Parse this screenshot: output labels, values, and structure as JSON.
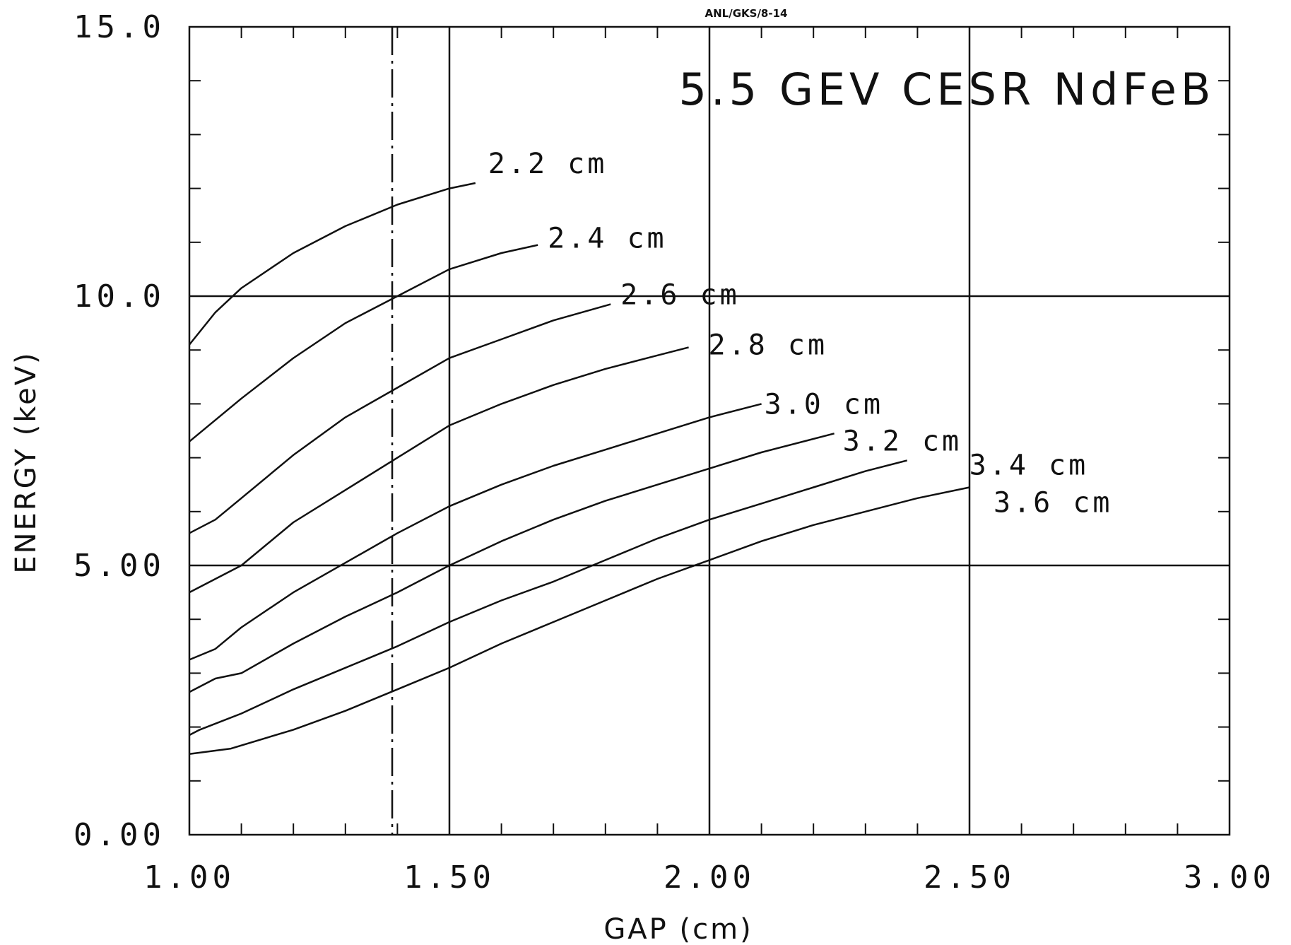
{
  "chart_data": {
    "type": "line",
    "title": "5.5 GEV CESR NdFeB",
    "tag": "ANL/GKS/8-14",
    "xlabel": "GAP (cm)",
    "ylabel": "ENERGY (keV)",
    "xlim": [
      1.0,
      3.0
    ],
    "ylim": [
      0.0,
      15.0
    ],
    "x_tick_labels": [
      "1.00",
      "1.50",
      "2.00",
      "2.50",
      "3.00"
    ],
    "y_tick_labels": [
      "0.00",
      "5.00",
      "10.0",
      "15.0"
    ],
    "x_tick_values": [
      1.0,
      1.5,
      2.0,
      2.5,
      3.0
    ],
    "y_tick_values": [
      0.0,
      5.0,
      10.0,
      15.0
    ],
    "grid": true,
    "reference_line": {
      "style": "dash-dot",
      "x": 1.39
    },
    "series": [
      {
        "name": "2.2 cm",
        "x": [
          1.0,
          1.05,
          1.1,
          1.2,
          1.3,
          1.4,
          1.5,
          1.55
        ],
        "y": [
          9.1,
          9.7,
          10.15,
          10.8,
          11.3,
          11.7,
          12.0,
          12.1
        ]
      },
      {
        "name": "2.4 cm",
        "x": [
          1.0,
          1.1,
          1.2,
          1.3,
          1.4,
          1.5,
          1.6,
          1.67
        ],
        "y": [
          7.3,
          8.1,
          8.85,
          9.5,
          10.0,
          10.5,
          10.8,
          10.95
        ]
      },
      {
        "name": "2.6 cm",
        "x": [
          1.0,
          1.05,
          1.1,
          1.2,
          1.3,
          1.4,
          1.5,
          1.6,
          1.7,
          1.81
        ],
        "y": [
          5.6,
          5.85,
          6.25,
          7.05,
          7.75,
          8.3,
          8.85,
          9.2,
          9.55,
          9.85
        ]
      },
      {
        "name": "2.8 cm",
        "x": [
          1.0,
          1.1,
          1.2,
          1.3,
          1.4,
          1.5,
          1.6,
          1.7,
          1.8,
          1.9,
          1.96
        ],
        "y": [
          4.5,
          5.0,
          5.8,
          6.4,
          7.0,
          7.6,
          8.0,
          8.35,
          8.65,
          8.9,
          9.05
        ]
      },
      {
        "name": "3.0 cm",
        "x": [
          1.0,
          1.05,
          1.1,
          1.2,
          1.3,
          1.4,
          1.5,
          1.6,
          1.7,
          1.8,
          1.9,
          2.0,
          2.1
        ],
        "y": [
          3.25,
          3.45,
          3.85,
          4.5,
          5.05,
          5.6,
          6.1,
          6.5,
          6.85,
          7.15,
          7.45,
          7.75,
          8.0
        ]
      },
      {
        "name": "3.2 cm",
        "x": [
          1.0,
          1.05,
          1.1,
          1.2,
          1.3,
          1.4,
          1.5,
          1.6,
          1.7,
          1.8,
          1.9,
          2.0,
          2.1,
          2.24
        ],
        "y": [
          2.65,
          2.9,
          3.0,
          3.55,
          4.05,
          4.5,
          5.0,
          5.45,
          5.85,
          6.2,
          6.5,
          6.8,
          7.1,
          7.45
        ]
      },
      {
        "name": "3.4 cm",
        "x": [
          1.0,
          1.02,
          1.1,
          1.2,
          1.3,
          1.4,
          1.5,
          1.6,
          1.7,
          1.8,
          1.9,
          2.0,
          2.1,
          2.2,
          2.3,
          2.38
        ],
        "y": [
          1.85,
          1.95,
          2.25,
          2.7,
          3.1,
          3.5,
          3.95,
          4.35,
          4.7,
          5.1,
          5.5,
          5.85,
          6.15,
          6.45,
          6.75,
          6.95
        ]
      },
      {
        "name": "3.6 cm",
        "x": [
          1.0,
          1.08,
          1.2,
          1.3,
          1.4,
          1.5,
          1.6,
          1.7,
          1.8,
          1.9,
          2.0,
          2.1,
          2.2,
          2.3,
          2.4,
          2.5
        ],
        "y": [
          1.5,
          1.6,
          1.95,
          2.3,
          2.7,
          3.1,
          3.55,
          3.95,
          4.35,
          4.75,
          5.1,
          5.45,
          5.75,
          6.0,
          6.25,
          6.45
        ]
      }
    ]
  }
}
